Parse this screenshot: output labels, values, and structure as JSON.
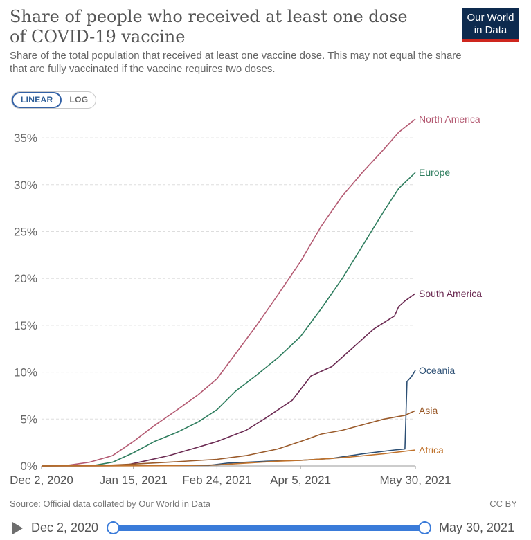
{
  "header": {
    "title": "Share of people who received at least one dose of COVID-19 vaccine",
    "subtitle": "Share of the total population that received at least one vaccine dose. This may not equal the share that are fully vaccinated if the vaccine requires two doses.",
    "logo_line1": "Our World",
    "logo_line2": "in Data"
  },
  "controls": {
    "linear_label": "LINEAR",
    "log_label": "LOG",
    "selected_scale": "linear"
  },
  "footer": {
    "source": "Source: Official data collated by Our World in Data",
    "license": "CC BY"
  },
  "timeline": {
    "start_label": "Dec 2, 2020",
    "end_label": "May 30, 2021",
    "start_value": 0,
    "end_value": 1
  },
  "colors": {
    "grid": "#dddddd",
    "axis_text": "#666666",
    "accent": "#3a7bd9"
  },
  "chart_data": {
    "type": "line",
    "title": "Share of people who received at least one dose of COVID-19 vaccine",
    "xlabel": "",
    "ylabel": "",
    "y_unit": "%",
    "ylim": [
      0,
      37
    ],
    "xlim": [
      "2020-12-02",
      "2021-05-30"
    ],
    "y_ticks": [
      0,
      5,
      10,
      15,
      20,
      25,
      30,
      35
    ],
    "y_tick_labels": [
      "0%",
      "5%",
      "10%",
      "15%",
      "20%",
      "25%",
      "30%",
      "35%"
    ],
    "x_ticks": [
      "2020-12-02",
      "2021-01-15",
      "2021-02-24",
      "2021-04-05",
      "2021-05-30"
    ],
    "x_tick_labels": [
      "Dec 2, 2020",
      "Jan 15, 2021",
      "Feb 24, 2021",
      "Apr 5, 2021",
      "May 30, 2021"
    ],
    "grid": "horizontal dashed",
    "legend": "inline labels at line ends",
    "series": [
      {
        "name": "North America",
        "color": "#b45a72",
        "points": [
          [
            "2020-12-02",
            0
          ],
          [
            "2020-12-14",
            0.05
          ],
          [
            "2020-12-25",
            0.4
          ],
          [
            "2021-01-05",
            1.1
          ],
          [
            "2021-01-15",
            2.6
          ],
          [
            "2021-01-25",
            4.3
          ],
          [
            "2021-02-05",
            6.0
          ],
          [
            "2021-02-15",
            7.6
          ],
          [
            "2021-02-24",
            9.3
          ],
          [
            "2021-03-05",
            12.0
          ],
          [
            "2021-03-15",
            15.0
          ],
          [
            "2021-03-25",
            18.2
          ],
          [
            "2021-04-05",
            21.8
          ],
          [
            "2021-04-15",
            25.6
          ],
          [
            "2021-04-25",
            28.8
          ],
          [
            "2021-05-05",
            31.4
          ],
          [
            "2021-05-15",
            33.8
          ],
          [
            "2021-05-22",
            35.6
          ],
          [
            "2021-05-30",
            37.0
          ]
        ]
      },
      {
        "name": "Europe",
        "color": "#2e7d5e",
        "points": [
          [
            "2020-12-02",
            0
          ],
          [
            "2020-12-27",
            0.05
          ],
          [
            "2021-01-05",
            0.4
          ],
          [
            "2021-01-15",
            1.4
          ],
          [
            "2021-01-25",
            2.6
          ],
          [
            "2021-02-05",
            3.6
          ],
          [
            "2021-02-15",
            4.7
          ],
          [
            "2021-02-24",
            6.0
          ],
          [
            "2021-03-05",
            8.0
          ],
          [
            "2021-03-15",
            9.7
          ],
          [
            "2021-03-25",
            11.5
          ],
          [
            "2021-04-05",
            13.8
          ],
          [
            "2021-04-15",
            16.8
          ],
          [
            "2021-04-25",
            20.0
          ],
          [
            "2021-05-05",
            23.6
          ],
          [
            "2021-05-15",
            27.2
          ],
          [
            "2021-05-22",
            29.6
          ],
          [
            "2021-05-30",
            31.3
          ]
        ]
      },
      {
        "name": "South America",
        "color": "#6b2a52",
        "points": [
          [
            "2020-12-02",
            0
          ],
          [
            "2021-01-10",
            0.02
          ],
          [
            "2021-01-20",
            0.5
          ],
          [
            "2021-02-01",
            1.1
          ],
          [
            "2021-02-15",
            2.0
          ],
          [
            "2021-02-24",
            2.6
          ],
          [
            "2021-03-10",
            3.8
          ],
          [
            "2021-03-20",
            5.2
          ],
          [
            "2021-04-01",
            7.0
          ],
          [
            "2021-04-10",
            9.6
          ],
          [
            "2021-04-20",
            10.6
          ],
          [
            "2021-05-01",
            12.8
          ],
          [
            "2021-05-10",
            14.6
          ],
          [
            "2021-05-20",
            16.0
          ],
          [
            "2021-05-22",
            17.0
          ],
          [
            "2021-05-25",
            17.6
          ],
          [
            "2021-05-30",
            18.4
          ]
        ]
      },
      {
        "name": "Oceania",
        "color": "#2c4f74",
        "points": [
          [
            "2020-12-02",
            0
          ],
          [
            "2021-02-20",
            0.05
          ],
          [
            "2021-03-01",
            0.3
          ],
          [
            "2021-03-20",
            0.5
          ],
          [
            "2021-04-05",
            0.6
          ],
          [
            "2021-04-20",
            0.8
          ],
          [
            "2021-05-05",
            1.3
          ],
          [
            "2021-05-20",
            1.7
          ],
          [
            "2021-05-25",
            1.8
          ],
          [
            "2021-05-26",
            9.0
          ],
          [
            "2021-05-28",
            9.5
          ],
          [
            "2021-05-30",
            10.2
          ]
        ]
      },
      {
        "name": "Asia",
        "color": "#9a5a2a",
        "points": [
          [
            "2020-12-02",
            0
          ],
          [
            "2021-01-01",
            0.05
          ],
          [
            "2021-01-15",
            0.2
          ],
          [
            "2021-02-01",
            0.4
          ],
          [
            "2021-02-24",
            0.7
          ],
          [
            "2021-03-10",
            1.1
          ],
          [
            "2021-03-25",
            1.8
          ],
          [
            "2021-04-05",
            2.6
          ],
          [
            "2021-04-15",
            3.4
          ],
          [
            "2021-04-25",
            3.8
          ],
          [
            "2021-05-05",
            4.4
          ],
          [
            "2021-05-15",
            5.0
          ],
          [
            "2021-05-25",
            5.4
          ],
          [
            "2021-05-30",
            5.9
          ]
        ]
      },
      {
        "name": "Africa",
        "color": "#c0722b",
        "points": [
          [
            "2020-12-02",
            0
          ],
          [
            "2021-02-01",
            0.02
          ],
          [
            "2021-02-24",
            0.1
          ],
          [
            "2021-03-10",
            0.3
          ],
          [
            "2021-03-25",
            0.5
          ],
          [
            "2021-04-05",
            0.6
          ],
          [
            "2021-04-20",
            0.8
          ],
          [
            "2021-05-01",
            1.0
          ],
          [
            "2021-05-15",
            1.3
          ],
          [
            "2021-05-30",
            1.7
          ]
        ]
      }
    ]
  }
}
